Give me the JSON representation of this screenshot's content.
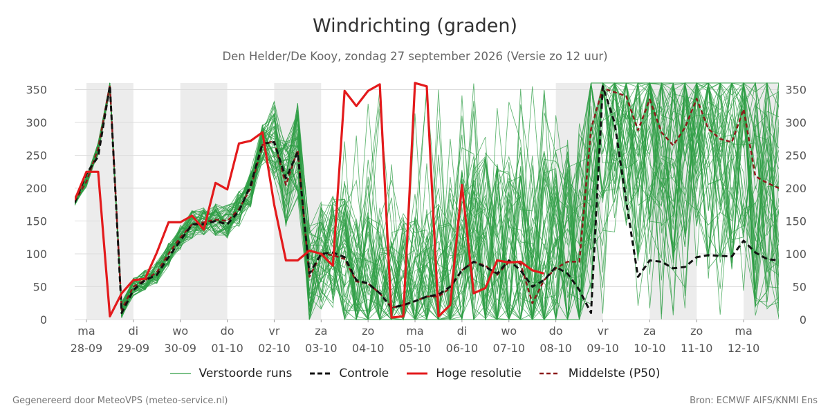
{
  "title": "Windrichting (graden)",
  "subtitle": "Den Helder/De Kooy, zondag 27 september 2026 (Versie zo 12 uur)",
  "footer_left": "Gegenereerd door MeteoVPS (meteo-service.nl)",
  "footer_right": "Bron: ECMWF AIFS/KNMI Ens",
  "chart_data": {
    "type": "line",
    "x_unit": "days from ma 28-09 00:00",
    "xlim": [
      -0.25,
      14.75
    ],
    "ylim": [
      0,
      360
    ],
    "y_ticks": [
      0,
      50,
      100,
      150,
      200,
      250,
      300,
      350
    ],
    "y_axis_right": true,
    "grid": true,
    "x_ticks": [
      {
        "day": "ma",
        "date": "28-09"
      },
      {
        "day": "di",
        "date": "29-09"
      },
      {
        "day": "wo",
        "date": "30-09"
      },
      {
        "day": "do",
        "date": "01-10"
      },
      {
        "day": "vr",
        "date": "02-10"
      },
      {
        "day": "za",
        "date": "03-10"
      },
      {
        "day": "zo",
        "date": "04-10"
      },
      {
        "day": "ma",
        "date": "05-10"
      },
      {
        "day": "di",
        "date": "06-10"
      },
      {
        "day": "wo",
        "date": "07-10"
      },
      {
        "day": "do",
        "date": "08-10"
      },
      {
        "day": "vr",
        "date": "09-10"
      },
      {
        "day": "za",
        "date": "10-10"
      },
      {
        "day": "zo",
        "date": "11-10"
      },
      {
        "day": "ma",
        "date": "12-10"
      }
    ],
    "night_bands": [
      [
        0,
        1
      ],
      [
        2,
        3
      ],
      [
        4,
        5
      ],
      [
        10,
        11
      ],
      [
        12,
        13
      ],
      [
        14,
        14.75
      ]
    ],
    "colors": {
      "ensemble": "#2e9e44",
      "control": "#111111",
      "high_res": "#e31a1c",
      "median": "#8b1a1a",
      "band": "#ececec",
      "grid": "#dddddd"
    },
    "ensemble_count": 50,
    "series": [
      {
        "name": "Controle",
        "x": [
          -0.25,
          0,
          0.25,
          0.5,
          0.75,
          1,
          1.25,
          1.5,
          1.75,
          2,
          2.25,
          2.5,
          2.75,
          3,
          3.25,
          3.5,
          3.75,
          4,
          4.25,
          4.5,
          4.75,
          5,
          5.25,
          5.5,
          5.75,
          6,
          6.25,
          6.5,
          6.75,
          7,
          7.25,
          7.5,
          7.75,
          8,
          8.25,
          8.5,
          8.75,
          9,
          9.25,
          9.5,
          9.75,
          10,
          10.25,
          10.5,
          10.75,
          11,
          11.25,
          11.5,
          11.75,
          12,
          12.25,
          12.5,
          12.75,
          13,
          13.25,
          13.5,
          13.75,
          14,
          14.25,
          14.5,
          14.75
        ],
        "values": [
          178,
          222,
          248,
          356,
          10,
          45,
          60,
          68,
          95,
          120,
          145,
          145,
          150,
          145,
          165,
          205,
          268,
          270,
          215,
          255,
          70,
          100,
          102,
          95,
          60,
          55,
          40,
          18,
          22,
          28,
          35,
          38,
          50,
          75,
          88,
          80,
          70,
          90,
          75,
          50,
          60,
          80,
          70,
          45,
          10,
          355,
          300,
          180,
          65,
          90,
          88,
          78,
          80,
          95,
          98,
          97,
          96,
          120,
          102,
          92,
          90
        ]
      },
      {
        "name": "Hoge resolutie",
        "x": [
          -0.25,
          0,
          0.25,
          0.5,
          0.75,
          1,
          1.25,
          1.5,
          1.75,
          2,
          2.25,
          2.5,
          2.75,
          3,
          3.25,
          3.5,
          3.75,
          4,
          4.25,
          4.5,
          4.75,
          5,
          5.25,
          5.5,
          5.75,
          6,
          6.25,
          6.5,
          6.75,
          7,
          7.25,
          7.5,
          7.75,
          8,
          8.25,
          8.5,
          8.75,
          9,
          9.25,
          9.5,
          9.75
        ],
        "values": [
          182,
          225,
          225,
          5,
          40,
          60,
          62,
          102,
          148,
          148,
          158,
          137,
          208,
          198,
          268,
          272,
          285,
          175,
          90,
          90,
          105,
          100,
          82,
          348,
          325,
          348,
          358,
          3,
          5,
          360,
          355,
          5,
          22,
          205,
          40,
          48,
          90,
          87,
          88,
          75,
          70
        ]
      },
      {
        "name": "Middelste (P50)",
        "x": [
          -0.25,
          0,
          0.25,
          0.5,
          0.75,
          1,
          1.25,
          1.5,
          1.75,
          2,
          2.25,
          2.5,
          2.75,
          3,
          3.25,
          3.5,
          3.75,
          4,
          4.25,
          4.5,
          4.75,
          5,
          5.25,
          5.5,
          5.75,
          6,
          6.25,
          6.5,
          6.75,
          7,
          7.25,
          7.5,
          7.75,
          8,
          8.25,
          8.5,
          8.75,
          9,
          9.25,
          9.5,
          9.75,
          10,
          10.25,
          10.5,
          10.75,
          11,
          11.25,
          11.5,
          11.75,
          12,
          12.25,
          12.5,
          12.75,
          13,
          13.25,
          13.5,
          13.75,
          14,
          14.25,
          14.5,
          14.75
        ],
        "values": [
          180,
          210,
          260,
          357,
          15,
          50,
          60,
          72,
          100,
          125,
          145,
          148,
          152,
          150,
          168,
          200,
          266,
          272,
          205,
          258,
          65,
          100,
          98,
          92,
          58,
          55,
          40,
          18,
          22,
          28,
          35,
          35,
          48,
          75,
          88,
          82,
          68,
          88,
          85,
          25,
          60,
          78,
          88,
          88,
          290,
          352,
          346,
          340,
          288,
          335,
          285,
          265,
          292,
          336,
          290,
          275,
          270,
          320,
          218,
          208,
          200
        ]
      }
    ]
  },
  "legend": [
    {
      "key": "ensemble",
      "label": "Verstoorde runs"
    },
    {
      "key": "control",
      "label": "Controle"
    },
    {
      "key": "high_res",
      "label": "Hoge resolutie"
    },
    {
      "key": "median",
      "label": "Middelste (P50)"
    }
  ]
}
